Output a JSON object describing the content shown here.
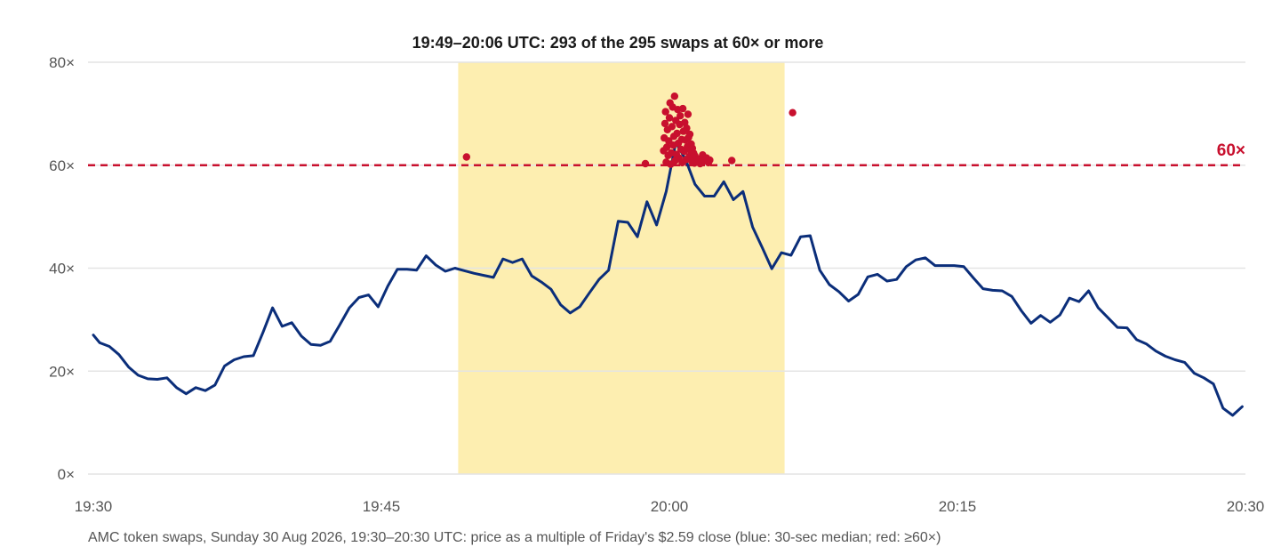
{
  "chart_data": {
    "type": "line",
    "title": "19:49–20:06 UTC: 293 of the 295 swaps at 60× or more",
    "caption": "AMC token swaps, Sunday 30 Aug 2026, 19:30–20:30 UTC: price as a multiple of Friday's $2.59 close (blue: 30-sec median; red: ≥60×)",
    "xlim": [
      "19:30",
      "20:30"
    ],
    "x_ticks": [
      "19:30",
      "19:45",
      "20:00",
      "20:15",
      "20:30"
    ],
    "ylim": [
      0,
      80
    ],
    "y_ticks": [
      0,
      20,
      40,
      60,
      80
    ],
    "y_tick_labels": [
      "0×",
      "20×",
      "40×",
      "60×",
      "80×"
    ],
    "grid": "horizontal",
    "highlight_window": {
      "start": "19:49",
      "end": "20:06",
      "color": "#fdeeb0"
    },
    "threshold": {
      "value": 60,
      "label": "60×",
      "color": "#c8102e"
    },
    "series": [
      {
        "kind": "line",
        "color": "#0b2e7a",
        "x": [
          "19:30:00",
          "19:30:20",
          "19:30:50",
          "19:31:20",
          "19:31:50",
          "19:32:20",
          "19:32:50",
          "19:33:20",
          "19:33:50",
          "19:34:20",
          "19:34:50",
          "19:35:20",
          "19:35:50",
          "19:36:20",
          "19:36:50",
          "19:37:20",
          "19:37:50",
          "19:38:20",
          "19:38:50",
          "19:39:20",
          "19:39:50",
          "19:40:20",
          "19:40:50",
          "19:41:20",
          "19:41:50",
          "19:42:20",
          "19:42:50",
          "19:43:20",
          "19:43:50",
          "19:44:20",
          "19:44:50",
          "19:45:20",
          "19:45:50",
          "19:46:20",
          "19:46:50",
          "19:47:20",
          "19:47:50",
          "19:48:20",
          "19:48:50",
          "19:49:20",
          "19:49:50",
          "19:50:20",
          "19:50:50",
          "19:51:20",
          "19:51:50",
          "19:52:20",
          "19:52:50",
          "19:53:20",
          "19:53:50",
          "19:54:20",
          "19:54:50",
          "19:55:20",
          "19:55:50",
          "19:56:20",
          "19:56:50",
          "19:57:20",
          "19:57:50",
          "19:58:20",
          "19:58:50",
          "19:59:20",
          "19:59:50",
          "20:00:20",
          "20:00:50",
          "20:01:20",
          "20:01:50",
          "20:02:20",
          "20:02:50",
          "20:03:20",
          "20:03:50",
          "20:04:20",
          "20:04:50",
          "20:05:20",
          "20:05:50",
          "20:06:20",
          "20:06:50",
          "20:07:20",
          "20:07:50",
          "20:08:20",
          "20:08:50",
          "20:09:20",
          "20:09:50",
          "20:10:20",
          "20:10:50",
          "20:11:20",
          "20:11:50",
          "20:12:20",
          "20:12:50",
          "20:13:20",
          "20:13:50",
          "20:14:20",
          "20:14:50",
          "20:15:20",
          "20:15:50",
          "20:16:20",
          "20:16:50",
          "20:17:20",
          "20:17:50",
          "20:18:20",
          "20:18:50",
          "20:19:20",
          "20:19:50",
          "20:20:20",
          "20:20:50",
          "20:21:20",
          "20:21:50",
          "20:22:20",
          "20:22:50",
          "20:23:20",
          "20:23:50",
          "20:24:20",
          "20:24:50",
          "20:25:20",
          "20:25:50",
          "20:26:20",
          "20:26:50",
          "20:27:20",
          "20:27:50",
          "20:28:20",
          "20:28:50",
          "20:29:20",
          "20:29:50"
        ],
        "y": [
          27.0,
          25.5,
          24.8,
          23.2,
          20.8,
          19.2,
          18.5,
          18.4,
          18.7,
          16.8,
          15.6,
          16.8,
          16.2,
          17.3,
          21.0,
          22.2,
          22.8,
          23.0,
          27.5,
          32.3,
          28.7,
          29.4,
          26.8,
          25.2,
          25.0,
          25.8,
          29.0,
          32.3,
          34.3,
          34.8,
          32.5,
          36.5,
          39.8,
          39.8,
          39.6,
          42.4,
          40.6,
          39.4,
          40.0,
          39.5,
          39.0,
          38.6,
          38.2,
          41.8,
          41.1,
          41.8,
          38.5,
          37.3,
          35.9,
          32.9,
          31.3,
          32.5,
          35.2,
          37.8,
          39.6,
          49.1,
          48.9,
          46.1,
          52.9,
          48.4,
          54.9,
          64.4,
          61.2,
          56.3,
          54.0,
          54.0,
          56.8,
          53.3,
          54.9,
          48.0,
          44.0,
          39.9,
          43.0,
          42.5,
          46.1,
          46.3,
          39.6,
          36.8,
          35.4,
          33.6,
          34.9,
          38.3,
          38.8,
          37.5,
          37.8,
          40.3,
          41.6,
          42.0,
          40.5,
          40.5,
          40.5,
          40.3,
          38.1,
          36.0,
          35.7,
          35.6,
          34.5,
          31.7,
          29.3,
          30.8,
          29.5,
          30.9,
          34.2,
          33.5,
          35.6,
          32.3,
          30.4,
          28.5,
          28.4,
          26.1,
          25.3,
          23.9,
          22.9,
          22.2,
          21.7,
          19.6,
          18.7,
          17.5,
          12.8,
          11.4,
          13.1
        ]
      },
      {
        "kind": "scatter",
        "color": "#c8102e",
        "name": "≥60×",
        "points": [
          [
            "19:49:26",
            61.6
          ],
          [
            "19:58:45",
            60.3
          ],
          [
            "20:03:15",
            60.9
          ],
          [
            "20:06:25",
            70.2
          ],
          [
            "19:59:42",
            62.8
          ],
          [
            "19:59:44",
            65.3
          ],
          [
            "19:59:46",
            68.1
          ],
          [
            "19:59:48",
            70.4
          ],
          [
            "19:59:50",
            60.6
          ],
          [
            "19:59:52",
            63.5
          ],
          [
            "19:59:54",
            66.9
          ],
          [
            "19:59:56",
            61.9
          ],
          [
            "19:59:58",
            64.7
          ],
          [
            "20:00:00",
            69.2
          ],
          [
            "20:00:02",
            72.1
          ],
          [
            "20:00:04",
            60.2
          ],
          [
            "20:00:06",
            62.4
          ],
          [
            "20:00:08",
            67.5
          ],
          [
            "20:00:10",
            71.3
          ],
          [
            "20:00:12",
            63.9
          ],
          [
            "20:00:14",
            65.6
          ],
          [
            "20:00:16",
            73.4
          ],
          [
            "20:00:18",
            60.9
          ],
          [
            "20:00:20",
            68.7
          ],
          [
            "20:00:22",
            62.1
          ],
          [
            "20:00:24",
            66.2
          ],
          [
            "20:00:26",
            70.8
          ],
          [
            "20:00:28",
            64.3
          ],
          [
            "20:00:30",
            61.4
          ],
          [
            "20:00:32",
            67.9
          ],
          [
            "20:00:34",
            69.6
          ],
          [
            "20:00:36",
            63.1
          ],
          [
            "20:00:38",
            65.0
          ],
          [
            "20:00:40",
            60.5
          ],
          [
            "20:00:42",
            71.0
          ],
          [
            "20:00:44",
            66.6
          ],
          [
            "20:00:46",
            62.7
          ],
          [
            "20:00:48",
            68.3
          ],
          [
            "20:00:50",
            64.9
          ],
          [
            "20:00:52",
            61.1
          ],
          [
            "20:00:54",
            67.2
          ],
          [
            "20:00:56",
            63.6
          ],
          [
            "20:00:58",
            69.9
          ],
          [
            "20:01:00",
            65.4
          ],
          [
            "20:01:02",
            61.7
          ],
          [
            "20:01:04",
            66.0
          ],
          [
            "20:01:06",
            62.9
          ],
          [
            "20:01:08",
            64.1
          ],
          [
            "20:01:10",
            60.8
          ],
          [
            "20:01:12",
            63.3
          ],
          [
            "20:01:14",
            61.5
          ],
          [
            "20:01:16",
            62.3
          ],
          [
            "20:01:18",
            60.4
          ],
          [
            "20:01:20",
            61.8
          ],
          [
            "20:01:24",
            60.7
          ],
          [
            "20:01:30",
            61.2
          ],
          [
            "20:01:36",
            60.3
          ],
          [
            "20:01:44",
            62.0
          ],
          [
            "20:01:50",
            60.9
          ],
          [
            "20:01:56",
            61.4
          ],
          [
            "20:02:02",
            60.5
          ],
          [
            "20:02:06",
            61.0
          ]
        ]
      }
    ]
  }
}
